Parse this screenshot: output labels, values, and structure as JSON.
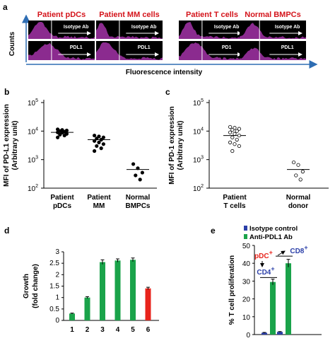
{
  "panel_a": {
    "letter": "a",
    "titles": [
      "Patient pDCs",
      "Patient MM cells",
      "Patient T cells",
      "Normal BMPCs"
    ],
    "top_labels": [
      "Isotype Ab",
      "Isotype Ab",
      "Isotype Ab",
      "Isotype Ab"
    ],
    "bottom_labels": [
      "PDL1",
      "PDL1",
      "PD1",
      "PDL1"
    ],
    "ylabel": "Counts",
    "xlabel": "Fluorescence intensity",
    "colors": {
      "title": "#d4141b",
      "fill": "#8b2b8f",
      "axis": "#2e6db3"
    }
  },
  "chart_data": [
    {
      "id": "b",
      "type": "scatter",
      "letter": "b",
      "ylabel_lines": [
        "MFI of PD-L1 expression",
        "(Arbitrary unit)"
      ],
      "ylim": [
        100,
        100000
      ],
      "log_scale": true,
      "yticks": [
        {
          "base": "10",
          "exp": "2"
        },
        {
          "base": "10",
          "exp": "3"
        },
        {
          "base": "10",
          "exp": "4"
        },
        {
          "base": "10",
          "exp": "5"
        }
      ],
      "categories": [
        [
          "Patient",
          "pDCs"
        ],
        [
          "Patient",
          "MM"
        ],
        [
          "Normal",
          "BMPCs"
        ]
      ],
      "medians": [
        9000,
        5000,
        450
      ],
      "points": [
        [
          11500,
          11000,
          10500,
          10000,
          9500,
          9000,
          8800,
          8000,
          7500,
          7000,
          6000
        ],
        [
          7000,
          6500,
          6000,
          5500,
          5000,
          4500,
          4000,
          3500,
          3000,
          2500,
          2000
        ],
        [
          700,
          500,
          350,
          280,
          200
        ]
      ]
    },
    {
      "id": "c",
      "type": "scatter",
      "letter": "c",
      "ylabel_lines": [
        "MFI of PD-1 expression",
        "(Arbitrary unit)"
      ],
      "ylim": [
        100,
        100000
      ],
      "log_scale": true,
      "yticks": [
        {
          "base": "10",
          "exp": "2"
        },
        {
          "base": "10",
          "exp": "3"
        },
        {
          "base": "10",
          "exp": "4"
        },
        {
          "base": "10",
          "exp": "5"
        }
      ],
      "categories": [
        [
          "Patient",
          "T cells"
        ],
        [
          "Normal",
          "donor"
        ]
      ],
      "medians": [
        7000,
        450
      ],
      "points": [
        [
          14000,
          13000,
          12000,
          11000,
          10000,
          9000,
          8000,
          7000,
          6000,
          5000,
          4000,
          3500,
          3000,
          2000
        ],
        [
          800,
          650,
          380,
          280,
          200
        ]
      ]
    },
    {
      "id": "d",
      "type": "bar",
      "letter": "d",
      "ylabel_lines": [
        "Growth",
        "(fold change)"
      ],
      "categories": [
        "1",
        "2",
        "3",
        "4",
        "5",
        "6"
      ],
      "values": [
        0.3,
        1.0,
        2.55,
        2.62,
        2.65,
        1.4
      ],
      "errors": [
        0.02,
        0.04,
        0.1,
        0.07,
        0.08,
        0.05
      ],
      "bar_colors": [
        "#1aa34a",
        "#1aa34a",
        "#1aa34a",
        "#1aa34a",
        "#1aa34a",
        "#e8241c"
      ],
      "ylim": [
        0,
        3
      ],
      "yticks": [
        "0",
        "0.5",
        "1",
        "1.5",
        "2",
        "2.5",
        "3"
      ]
    },
    {
      "id": "e",
      "type": "bar",
      "letter": "e",
      "ylabel": "% T cell proliferation",
      "ylim": [
        0,
        50
      ],
      "yticks": [
        "0",
        "10",
        "20",
        "30",
        "40",
        "50"
      ],
      "series": [
        {
          "name": "Isotype control",
          "color": "#2b3fa8",
          "values": [
            1.0,
            1.5
          ],
          "errors": [
            0.2,
            0.2
          ]
        },
        {
          "name": "Anti-PDL1 Ab",
          "color": "#1aa34a",
          "values": [
            29.5,
            40.0
          ],
          "errors": [
            1.6,
            2.2
          ]
        }
      ],
      "annotations": {
        "pdc": "pDC",
        "cd4": "CD4",
        "cd8": "CD8",
        "plus": "+",
        "pdc_color": "#e8241c",
        "cd_color": "#2b3fa8"
      }
    }
  ]
}
